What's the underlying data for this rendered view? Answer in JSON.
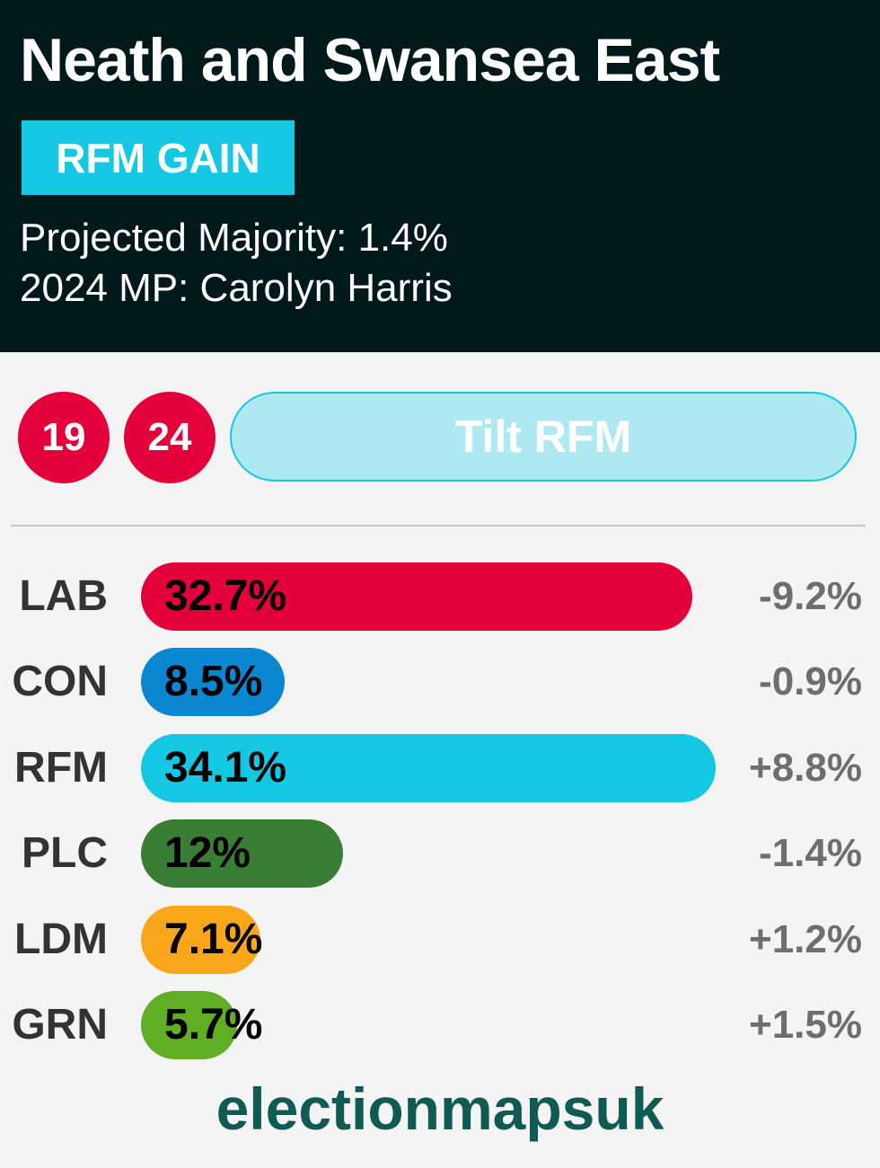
{
  "header": {
    "title": "Neath and Swansea East",
    "badge": "RFM GAIN",
    "majority": "Projected Majority: 1.4%",
    "mp": "2024 MP: Carolyn Harris"
  },
  "history": {
    "circles": [
      "19",
      "24"
    ],
    "tilt_label": "Tilt RFM"
  },
  "colors": {
    "header_bg": "#02191b",
    "rfm": "#14c8e4",
    "lab": "#e4003b",
    "con": "#0a87d0",
    "plc": "#3a7d35",
    "ldm": "#faa61a",
    "grn": "#5fae24"
  },
  "chart_data": {
    "type": "bar",
    "orientation": "horizontal",
    "categories": [
      "LAB",
      "CON",
      "RFM",
      "PLC",
      "LDM",
      "GRN"
    ],
    "values": [
      32.7,
      8.5,
      34.1,
      12,
      7.1,
      5.7
    ],
    "value_labels": [
      "32.7%",
      "8.5%",
      "34.1%",
      "12%",
      "7.1%",
      "5.7%"
    ],
    "changes": [
      "-9.2%",
      "-0.9%",
      "+8.8%",
      "-1.4%",
      "+1.2%",
      "+1.5%"
    ],
    "bar_colors": [
      "#e4003b",
      "#0a87d0",
      "#14c8e4",
      "#3a7d35",
      "#faa61a",
      "#5fae24"
    ],
    "xlim": [
      0,
      34.1
    ]
  },
  "footer": {
    "brand": "electionmapsuk"
  }
}
